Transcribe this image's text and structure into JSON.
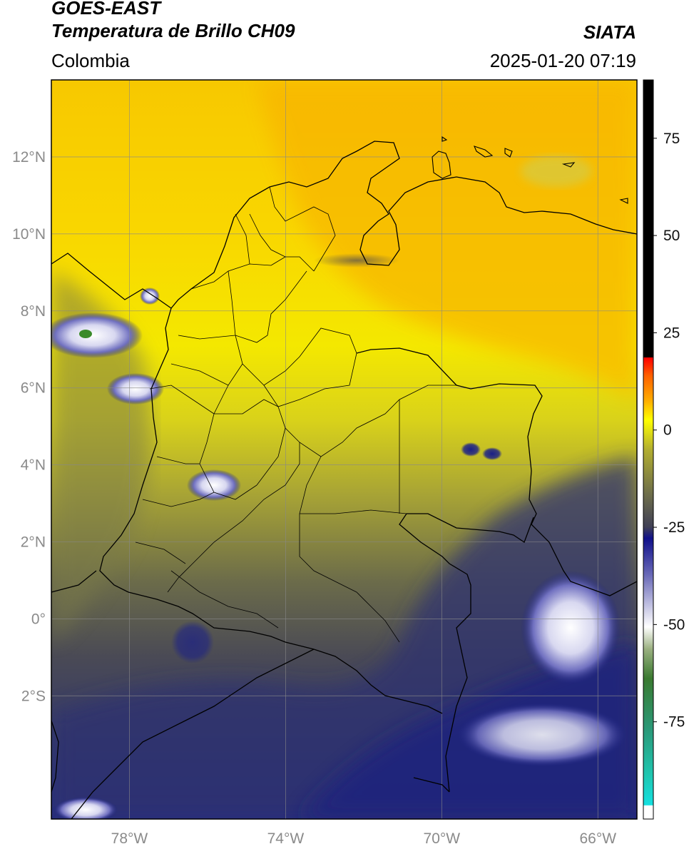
{
  "header": {
    "satellite": "GOES-EAST",
    "product": "Temperatura de Brillo CH09",
    "region": "Colombia",
    "brand": "SIATA",
    "datetime": "2025-01-20 07:19"
  },
  "map": {
    "lon_range": [
      -80.0,
      -65.0
    ],
    "lat_range": [
      -5.2,
      14.0
    ],
    "lon_ticks": [
      {
        "value": -78,
        "label": "78°W"
      },
      {
        "value": -74,
        "label": "74°W"
      },
      {
        "value": -70,
        "label": "70°W"
      },
      {
        "value": -66,
        "label": "66°W"
      }
    ],
    "lat_ticks": [
      {
        "value": 12,
        "label": "12°N"
      },
      {
        "value": 10,
        "label": "10°N"
      },
      {
        "value": 8,
        "label": "8°N"
      },
      {
        "value": 6,
        "label": "6°N"
      },
      {
        "value": 4,
        "label": "4°N"
      },
      {
        "value": 2,
        "label": "2°N"
      },
      {
        "value": 0,
        "label": "0°"
      },
      {
        "value": -2,
        "label": "2°S"
      }
    ],
    "grid": true
  },
  "colorbar": {
    "range": [
      -100,
      90
    ],
    "ticks": [
      {
        "value": 75,
        "label": "75"
      },
      {
        "value": 50,
        "label": "50"
      },
      {
        "value": 25,
        "label": "25"
      },
      {
        "value": 0,
        "label": "0"
      },
      {
        "value": -25,
        "label": "-25"
      },
      {
        "value": -50,
        "label": "-50"
      },
      {
        "value": -75,
        "label": "-75"
      }
    ]
  }
}
